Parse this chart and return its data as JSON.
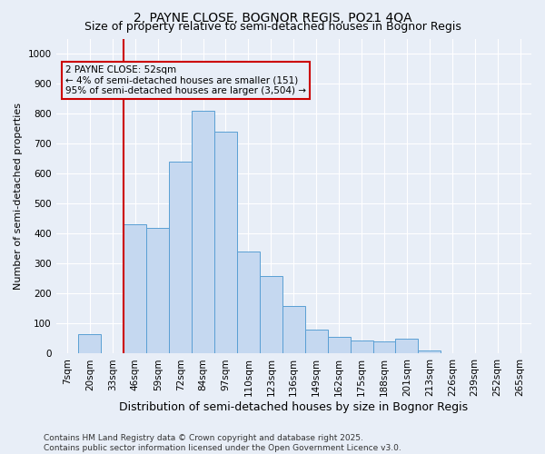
{
  "title": "2, PAYNE CLOSE, BOGNOR REGIS, PO21 4QA",
  "subtitle": "Size of property relative to semi-detached houses in Bognor Regis",
  "xlabel": "Distribution of semi-detached houses by size in Bognor Regis",
  "ylabel": "Number of semi-detached properties",
  "categories": [
    "7sqm",
    "20sqm",
    "33sqm",
    "46sqm",
    "59sqm",
    "72sqm",
    "84sqm",
    "97sqm",
    "110sqm",
    "123sqm",
    "136sqm",
    "149sqm",
    "162sqm",
    "175sqm",
    "188sqm",
    "201sqm",
    "213sqm",
    "226sqm",
    "239sqm",
    "252sqm",
    "265sqm"
  ],
  "bar_heights": [
    0,
    65,
    0,
    430,
    420,
    640,
    810,
    740,
    340,
    260,
    160,
    80,
    55,
    45,
    40,
    50,
    10,
    0,
    0,
    0,
    0
  ],
  "bar_color": "#c5d8f0",
  "bar_edge_color": "#5a9fd4",
  "vline_pos": 2.5,
  "vline_color": "#cc0000",
  "annotation_text": "2 PAYNE CLOSE: 52sqm\n← 4% of semi-detached houses are smaller (151)\n95% of semi-detached houses are larger (3,504) →",
  "annotation_box_color": "#cc0000",
  "ylim": [
    0,
    1050
  ],
  "yticks": [
    0,
    100,
    200,
    300,
    400,
    500,
    600,
    700,
    800,
    900,
    1000
  ],
  "footnote": "Contains HM Land Registry data © Crown copyright and database right 2025.\nContains public sector information licensed under the Open Government Licence v3.0.",
  "bg_color": "#e8eef7",
  "plot_bg_color": "#e8eef7",
  "grid_color": "#ffffff",
  "title_fontsize": 10,
  "subtitle_fontsize": 9,
  "ylabel_fontsize": 8,
  "xlabel_fontsize": 9,
  "footnote_fontsize": 6.5,
  "tick_fontsize": 7.5,
  "ann_fontsize": 7.5
}
